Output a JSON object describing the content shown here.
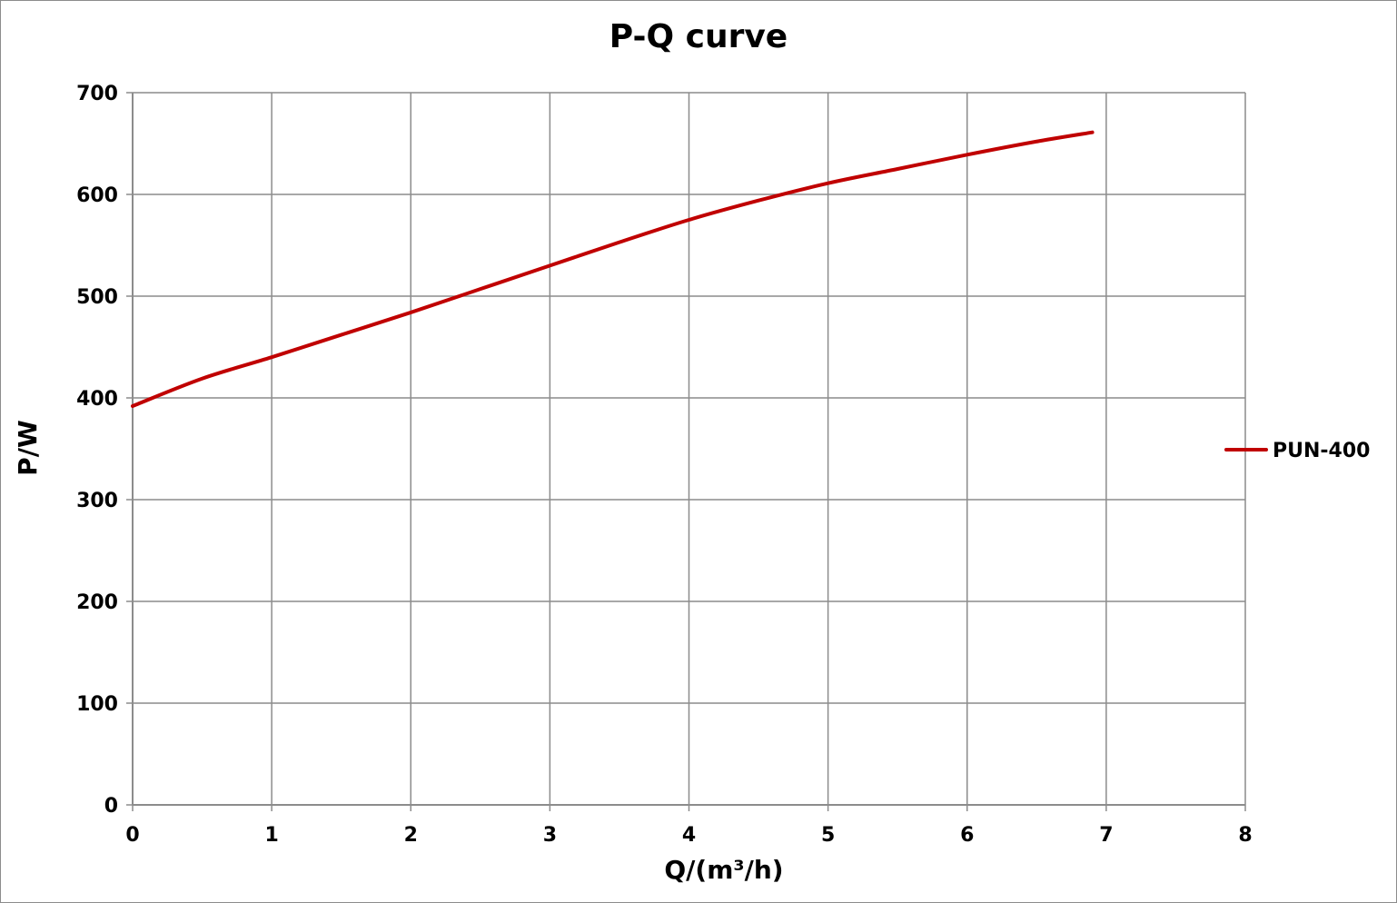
{
  "chart_data": {
    "type": "line",
    "title": "P-Q  curve",
    "xlabel": "Q/(m³/h)",
    "ylabel": "P/W",
    "xlim": [
      0,
      8
    ],
    "ylim": [
      0,
      700
    ],
    "x_ticks": [
      "0",
      "1",
      "2",
      "3",
      "4",
      "5",
      "6",
      "7",
      "8"
    ],
    "y_ticks": [
      "0",
      "100",
      "200",
      "300",
      "400",
      "500",
      "600",
      "700"
    ],
    "grid": true,
    "legend_position": "right",
    "series": [
      {
        "name": "PUN-400",
        "color": "#c00000",
        "x": [
          0,
          0.5,
          1,
          1.5,
          2,
          2.5,
          3,
          3.5,
          4,
          4.5,
          5,
          5.5,
          6,
          6.5,
          6.9
        ],
        "y": [
          392,
          419,
          440,
          462,
          484,
          507,
          530,
          553,
          575,
          594,
          611,
          625,
          639,
          652,
          661
        ]
      }
    ]
  }
}
